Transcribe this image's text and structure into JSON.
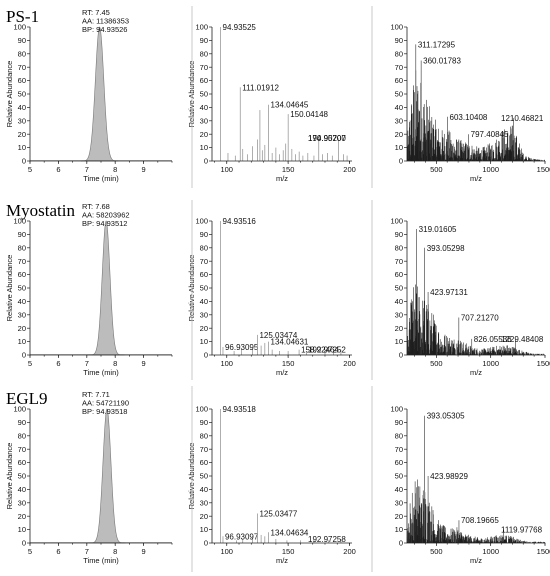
{
  "chart_data": [
    {
      "type": "chromatogram",
      "panel": "row1-chromatogram",
      "sample": "PS-1",
      "info": [
        "RT: 7.45",
        "AA: 11386353",
        "BP: 94.93526"
      ],
      "xlabel": "Time (min)",
      "ylabel": "Relative Abundance",
      "xlim": [
        5,
        10
      ],
      "ylim": [
        0,
        100
      ],
      "xticks": [
        5,
        6,
        7,
        8,
        9
      ],
      "yticks": [
        0,
        10,
        20,
        30,
        40,
        50,
        60,
        70,
        80,
        90,
        100
      ],
      "peak": {
        "rt": 7.45,
        "height": 100,
        "width": 0.35
      }
    },
    {
      "type": "bar",
      "panel": "row1-spectrum-low",
      "xlabel": "m/z",
      "ylabel": "Relative Abundance",
      "xlim": [
        88,
        202
      ],
      "ylim": [
        0,
        100
      ],
      "xticks": [
        100,
        150,
        200
      ],
      "yticks": [
        0,
        10,
        20,
        30,
        40,
        50,
        60,
        70,
        80,
        90,
        100
      ],
      "peaks": [
        {
          "x": 94.93525,
          "y": 100,
          "label": "94.93525"
        },
        {
          "x": 111.01912,
          "y": 55,
          "label": "111.01912"
        },
        {
          "x": 134.04645,
          "y": 42,
          "label": "134.04645"
        },
        {
          "x": 150.04148,
          "y": 35,
          "label": "150.04148"
        },
        {
          "x": 174.90207,
          "y": 17,
          "label": "174.90207"
        },
        {
          "x": 190.957,
          "y": 17,
          "label": "190.95700"
        }
      ],
      "minor": [
        [
          101,
          6
        ],
        [
          107,
          4
        ],
        [
          113,
          9
        ],
        [
          117,
          5
        ],
        [
          121,
          11
        ],
        [
          125,
          16
        ],
        [
          127,
          38
        ],
        [
          129,
          8
        ],
        [
          131,
          12
        ],
        [
          137,
          6
        ],
        [
          140,
          10
        ],
        [
          143,
          5
        ],
        [
          146,
          8
        ],
        [
          148,
          13
        ],
        [
          153,
          9
        ],
        [
          156,
          5
        ],
        [
          159,
          7
        ],
        [
          162,
          4
        ],
        [
          166,
          6
        ],
        [
          171,
          4
        ],
        [
          178,
          5
        ],
        [
          182,
          6
        ],
        [
          186,
          4
        ],
        [
          195,
          5
        ],
        [
          198,
          4
        ]
      ]
    },
    {
      "type": "bar",
      "panel": "row1-spectrum-high",
      "xlabel": "m/z",
      "ylabel": "",
      "xlim": [
        230,
        1500
      ],
      "ylim": [
        0,
        100
      ],
      "xticks": [
        500,
        1000,
        1500
      ],
      "yticks": [
        0,
        10,
        20,
        30,
        40,
        50,
        60,
        70,
        80,
        90,
        100
      ],
      "peaks": [
        {
          "x": 311.17295,
          "y": 87,
          "label": "311.17295"
        },
        {
          "x": 360.01783,
          "y": 75,
          "label": "360.01783"
        },
        {
          "x": 603.10408,
          "y": 33,
          "label": "603.10408"
        },
        {
          "x": 797.40845,
          "y": 20,
          "label": "797.40845"
        },
        {
          "x": 1210.46821,
          "y": 32,
          "label": "1210.46821"
        }
      ],
      "density": [
        [
          250,
          38
        ],
        [
          300,
          72
        ],
        [
          350,
          66
        ],
        [
          400,
          52
        ],
        [
          450,
          38
        ],
        [
          500,
          30
        ],
        [
          550,
          24
        ],
        [
          600,
          25
        ],
        [
          650,
          20
        ],
        [
          700,
          17
        ],
        [
          750,
          15
        ],
        [
          800,
          15
        ],
        [
          850,
          12
        ],
        [
          900,
          10
        ],
        [
          950,
          11
        ],
        [
          1000,
          14
        ],
        [
          1050,
          18
        ],
        [
          1100,
          24
        ],
        [
          1150,
          26
        ],
        [
          1200,
          28
        ],
        [
          1250,
          18
        ],
        [
          1300,
          6
        ],
        [
          1350,
          3
        ],
        [
          1400,
          2
        ],
        [
          1450,
          1
        ],
        [
          1500,
          1
        ]
      ]
    },
    {
      "type": "chromatogram",
      "panel": "row2-chromatogram",
      "sample": "Myostatin",
      "info": [
        "RT: 7.68",
        "AA: 58203962",
        "BP: 94.93512"
      ],
      "xlabel": "Time (min)",
      "ylabel": "Relative Abundance",
      "xlim": [
        5,
        10
      ],
      "ylim": [
        0,
        100
      ],
      "xticks": [
        5,
        6,
        7,
        8,
        9
      ],
      "yticks": [
        0,
        10,
        20,
        30,
        40,
        50,
        60,
        70,
        80,
        90,
        100
      ],
      "peak": {
        "rt": 7.68,
        "height": 100,
        "width": 0.32
      }
    },
    {
      "type": "bar",
      "panel": "row2-spectrum-low",
      "xlabel": "m/z",
      "ylabel": "Relative Abundance",
      "xlim": [
        88,
        202
      ],
      "ylim": [
        0,
        100
      ],
      "xticks": [
        100,
        150,
        200
      ],
      "yticks": [
        0,
        10,
        20,
        30,
        40,
        50,
        60,
        70,
        80,
        90,
        100
      ],
      "peaks": [
        {
          "x": 94.93516,
          "y": 100,
          "label": "94.93516"
        },
        {
          "x": 96.93095,
          "y": 6,
          "label": "96.93095"
        },
        {
          "x": 125.03474,
          "y": 15,
          "label": "125.03474"
        },
        {
          "x": 134.04631,
          "y": 10,
          "label": "134.04631"
        },
        {
          "x": 158.92464,
          "y": 4,
          "label": "158.92464"
        },
        {
          "x": 192.97252,
          "y": 4,
          "label": "192.97252"
        }
      ],
      "minor": [
        [
          106,
          3
        ],
        [
          112,
          4
        ],
        [
          121,
          5
        ],
        [
          128,
          7
        ],
        [
          131,
          9
        ],
        [
          137,
          4
        ],
        [
          143,
          3
        ],
        [
          150,
          3
        ],
        [
          165,
          2
        ],
        [
          180,
          3
        ],
        [
          187,
          2
        ]
      ]
    },
    {
      "type": "bar",
      "panel": "row2-spectrum-high",
      "xlabel": "m/z",
      "ylabel": "",
      "xlim": [
        230,
        1500
      ],
      "ylim": [
        0,
        100
      ],
      "xticks": [
        500,
        1000,
        1500
      ],
      "yticks": [
        0,
        10,
        20,
        30,
        40,
        50,
        60,
        70,
        80,
        90,
        100
      ],
      "peaks": [
        {
          "x": 319.01605,
          "y": 94,
          "label": "319.01605"
        },
        {
          "x": 393.05298,
          "y": 80,
          "label": "393.05298"
        },
        {
          "x": 423.97131,
          "y": 47,
          "label": "423.97131"
        },
        {
          "x": 707.2127,
          "y": 28,
          "label": "707.21270"
        },
        {
          "x": 826.05536,
          "y": 12,
          "label": "826.05536"
        },
        {
          "x": 1229.48408,
          "y": 12,
          "label": "1229.48408"
        }
      ],
      "density": [
        [
          250,
          32
        ],
        [
          300,
          58
        ],
        [
          350,
          48
        ],
        [
          400,
          44
        ],
        [
          450,
          36
        ],
        [
          500,
          26
        ],
        [
          550,
          18
        ],
        [
          600,
          16
        ],
        [
          650,
          14
        ],
        [
          700,
          14
        ],
        [
          750,
          10
        ],
        [
          800,
          8
        ],
        [
          850,
          6
        ],
        [
          900,
          5
        ],
        [
          950,
          5
        ],
        [
          1000,
          6
        ],
        [
          1050,
          7
        ],
        [
          1100,
          8
        ],
        [
          1150,
          8
        ],
        [
          1200,
          7
        ],
        [
          1250,
          5
        ],
        [
          1300,
          3
        ],
        [
          1350,
          2
        ],
        [
          1400,
          1
        ],
        [
          1450,
          1
        ],
        [
          1500,
          1
        ]
      ]
    },
    {
      "type": "chromatogram",
      "panel": "row3-chromatogram",
      "sample": "EGL9",
      "info": [
        "RT: 7.71",
        "AA: 54721190",
        "BP: 94.93518"
      ],
      "xlabel": "Time (min)",
      "ylabel": "Relative Abundance",
      "xlim": [
        5,
        10
      ],
      "ylim": [
        0,
        100
      ],
      "xticks": [
        5,
        6,
        7,
        8,
        9
      ],
      "yticks": [
        0,
        10,
        20,
        30,
        40,
        50,
        60,
        70,
        80,
        90,
        100
      ],
      "peak": {
        "rt": 7.71,
        "height": 100,
        "width": 0.33
      }
    },
    {
      "type": "bar",
      "panel": "row3-spectrum-low",
      "xlabel": "m/z",
      "ylabel": "Relative Abundance",
      "xlim": [
        88,
        202
      ],
      "ylim": [
        0,
        100
      ],
      "xticks": [
        100,
        150,
        200
      ],
      "yticks": [
        0,
        10,
        20,
        30,
        40,
        50,
        60,
        70,
        80,
        90,
        100
      ],
      "peaks": [
        {
          "x": 94.93518,
          "y": 100,
          "label": "94.93518"
        },
        {
          "x": 96.93097,
          "y": 5,
          "label": "96.93097"
        },
        {
          "x": 125.03477,
          "y": 22,
          "label": "125.03477"
        },
        {
          "x": 134.04634,
          "y": 8,
          "label": "134.04634"
        },
        {
          "x": 192.97258,
          "y": 3,
          "label": "192.97258"
        }
      ],
      "minor": [
        [
          108,
          2
        ],
        [
          113,
          3
        ],
        [
          121,
          4
        ],
        [
          128,
          6
        ],
        [
          131,
          5
        ],
        [
          140,
          3
        ],
        [
          149,
          2
        ],
        [
          160,
          2
        ],
        [
          171,
          2
        ],
        [
          183,
          2
        ]
      ]
    },
    {
      "type": "bar",
      "panel": "row3-spectrum-high",
      "xlabel": "m/z",
      "ylabel": "",
      "xlim": [
        230,
        1500
      ],
      "ylim": [
        0,
        100
      ],
      "xticks": [
        500,
        1000,
        1500
      ],
      "yticks": [
        0,
        10,
        20,
        30,
        40,
        50,
        60,
        70,
        80,
        90,
        100
      ],
      "peaks": [
        {
          "x": 393.05305,
          "y": 95,
          "label": "393.05305"
        },
        {
          "x": 423.98929,
          "y": 50,
          "label": "423.98929"
        },
        {
          "x": 708.19665,
          "y": 17,
          "label": "708.19665"
        },
        {
          "x": 1119.97768,
          "y": 10,
          "label": "1119.97768"
        }
      ],
      "density": [
        [
          250,
          28
        ],
        [
          300,
          54
        ],
        [
          350,
          46
        ],
        [
          400,
          44
        ],
        [
          450,
          32
        ],
        [
          500,
          20
        ],
        [
          550,
          14
        ],
        [
          600,
          12
        ],
        [
          650,
          11
        ],
        [
          700,
          12
        ],
        [
          750,
          8
        ],
        [
          800,
          6
        ],
        [
          850,
          5
        ],
        [
          900,
          4
        ],
        [
          950,
          4
        ],
        [
          1000,
          5
        ],
        [
          1050,
          6
        ],
        [
          1100,
          7
        ],
        [
          1150,
          6
        ],
        [
          1200,
          5
        ],
        [
          1250,
          3
        ],
        [
          1300,
          2
        ],
        [
          1350,
          1
        ],
        [
          1400,
          1
        ],
        [
          1450,
          1
        ],
        [
          1500,
          1
        ]
      ]
    }
  ]
}
